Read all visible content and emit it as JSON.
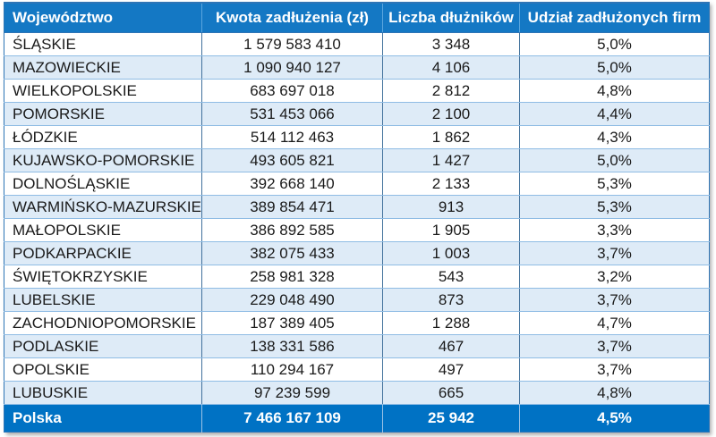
{
  "chart_data": {
    "type": "table",
    "title": "",
    "columns": [
      "Województwo",
      "Kwota zadłużenia (zł)",
      "Liczba dłużników",
      "Udział zadłużonych firm"
    ],
    "rows": [
      [
        "ŚLĄSKIE",
        "1 579 583 410",
        "3 348",
        "5,0%"
      ],
      [
        "MAZOWIECKIE",
        "1 090 940 127",
        "4 106",
        "5,0%"
      ],
      [
        "WIELKOPOLSKIE",
        "683 697 018",
        "2 812",
        "4,8%"
      ],
      [
        "POMORSKIE",
        "531 453 066",
        "2 100",
        "4,4%"
      ],
      [
        "ŁÓDZKIE",
        "514 112 463",
        "1 862",
        "4,3%"
      ],
      [
        "KUJAWSKO-POMORSKIE",
        "493 605 821",
        "1 427",
        "5,0%"
      ],
      [
        "DOLNOŚLĄSKIE",
        "392 668 140",
        "2 133",
        "5,3%"
      ],
      [
        "WARMIŃSKO-MAZURSKIE",
        "389 854 471",
        "913",
        "5,3%"
      ],
      [
        "MAŁOPOLSKIE",
        "386 892 585",
        "1 905",
        "3,3%"
      ],
      [
        "PODKARPACKIE",
        "382 075 433",
        "1 003",
        "3,7%"
      ],
      [
        "ŚWIĘTOKRZYSKIE",
        "258 981 328",
        "543",
        "3,2%"
      ],
      [
        "LUBELSKIE",
        "229 048 490",
        "873",
        "3,7%"
      ],
      [
        "ZACHODNIOPOMORSKIE",
        "187 389 405",
        "1 288",
        "4,7%"
      ],
      [
        "PODLASKIE",
        "138 331 586",
        "467",
        "3,7%"
      ],
      [
        "OPOLSKIE",
        "110 294 167",
        "497",
        "3,7%"
      ],
      [
        "LUBUSKIE",
        "97 239 599",
        "665",
        "4,8%"
      ]
    ],
    "footer": [
      "Polska",
      "7 466 167 109",
      "25 942",
      "4,5%"
    ],
    "layout": {
      "zebra_striping": true,
      "first_data_row_shaded": true,
      "value_columns_alignment": "center",
      "name_column_alignment": "left"
    }
  },
  "colors": {
    "header_bg": "#1478C4",
    "footer_bg": "#0072C4",
    "row_bg": "#FFFFFF",
    "row_alt_bg": "#DEEBF7",
    "h_grid_line": "#8FBCE4",
    "v_grid_line": "#41719C",
    "outer_border": "#2E75B6",
    "header_divider": "#5BA6DE",
    "footer_divider": "#9DC3E6",
    "text": "#1A1A1A",
    "header_text": "#FFFFFF"
  }
}
